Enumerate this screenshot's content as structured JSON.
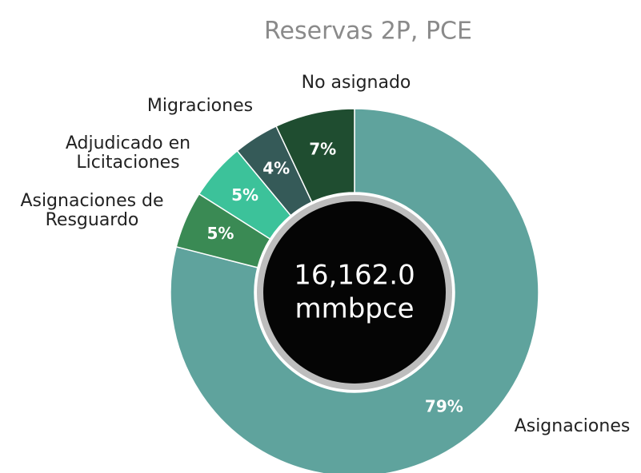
{
  "chart_data": {
    "type": "donut",
    "title": "Reservas 2P, PCE",
    "categories": [
      "Asignaciones",
      "Asignaciones de Resguardo",
      "Adjudicado en Licitaciones",
      "Migraciones",
      "No asignado"
    ],
    "values": [
      79,
      5,
      5,
      4,
      7
    ],
    "value_labels": [
      "79%",
      "5%",
      "5%",
      "4%",
      "7%"
    ],
    "colors": [
      "#5fa39d",
      "#3a8a54",
      "#3cc29a",
      "#355a58",
      "#1f4d30"
    ],
    "center_label": [
      "16,162.0",
      "mmbpce"
    ]
  }
}
